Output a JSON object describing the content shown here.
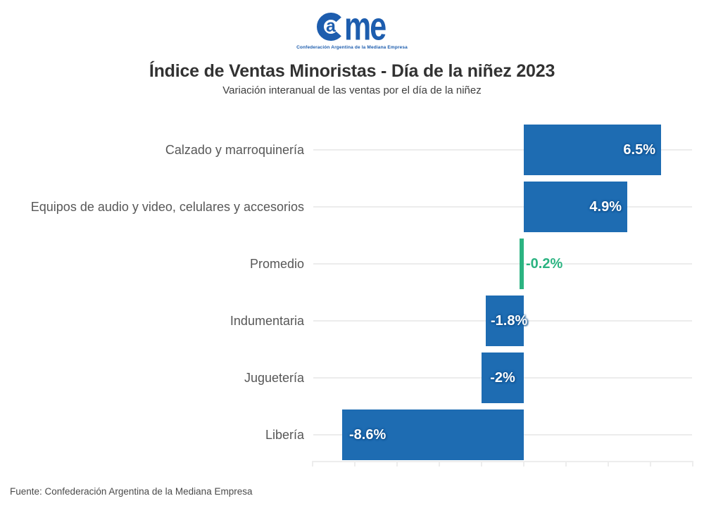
{
  "logo": {
    "wordmark_a": "a",
    "wordmark_me": "me",
    "tagline": "Confederación Argentina de la Mediana Empresa",
    "color": "#1d5dae"
  },
  "footer": {
    "source": "Fuente: Confederación Argentina de la Mediana Empresa"
  },
  "chart_data": {
    "type": "bar",
    "orientation": "horizontal",
    "title": "Índice de Ventas Minoristas - Día de la niñez 2023",
    "subtitle": "Variación interanual de las ventas por el día de la niñez",
    "categories": [
      "Calzado y marroquinería",
      "Equipos de audio y video, celulares y accesorios",
      "Promedio",
      "Indumentaria",
      "Juguetería",
      "Libería"
    ],
    "values": [
      6.5,
      4.9,
      -0.2,
      -1.8,
      -2,
      -8.6
    ],
    "value_labels": [
      "6.5%",
      "4.9%",
      "-0.2%",
      "-1.8%",
      "-2%",
      "-8.6%"
    ],
    "value_label_placement": [
      "inside-end",
      "inside-end",
      "outside-end",
      "inside-start-overflow",
      "center",
      "inside-start"
    ],
    "highlight_index": 2,
    "colors": {
      "bar": "#1e6cb2",
      "highlight": "#2bb381",
      "value_text": "#ffffff",
      "grid": "#ececec",
      "axis": "#ededed",
      "category_text": "#575757"
    },
    "xlim": [
      -10,
      8
    ],
    "x_tick_step": 2,
    "x_tick_labels_visible": false,
    "grid": "horizontal-per-category",
    "legend": false
  }
}
